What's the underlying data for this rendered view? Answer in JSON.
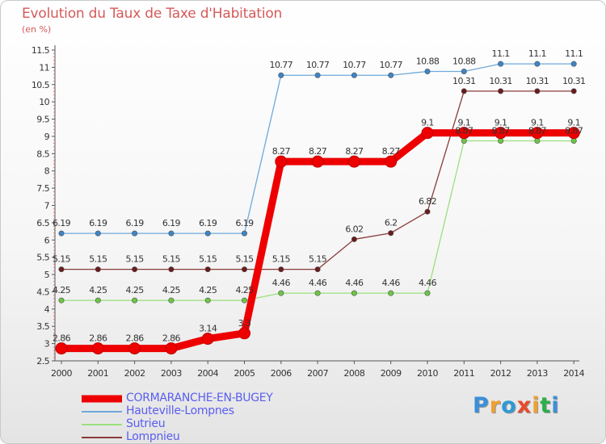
{
  "title": "Evolution du Taux de Taxe d'Habitation",
  "subtitle": "(en %)",
  "brand": {
    "text": "Proxiti",
    "letter_colors": [
      "#3b8fd9",
      "#f0a030",
      "#2e9ad6",
      "#e84a2a",
      "#f0a030",
      "#2eae4a",
      "#3b8fd9"
    ]
  },
  "chart_data": {
    "type": "line",
    "title": "Evolution du Taux de Taxe d'Habitation",
    "ylabel": "(en %)",
    "xlabel": "",
    "x": [
      "2000",
      "2001",
      "2002",
      "2003",
      "2004",
      "2005",
      "2006",
      "2007",
      "2008",
      "2009",
      "2010",
      "2011",
      "2012",
      "2013",
      "2014"
    ],
    "ylim": [
      2.5,
      11.5
    ],
    "yticks": [
      "2.5",
      "3",
      "3.5",
      "4",
      "4.5",
      "5",
      "5.5",
      "6",
      "6.5",
      "7",
      "7.5",
      "8",
      "8.5",
      "9",
      "9.5",
      "10",
      "10.5",
      "11",
      "11.5"
    ],
    "grid": false,
    "legend_position": "bottom-left",
    "series": [
      {
        "name": "CORMARANCHE-EN-BUGEY",
        "color": "#ee0000",
        "marker_color": "#ee0000",
        "width": "thick",
        "values": [
          2.86,
          2.86,
          2.86,
          2.86,
          3.14,
          3.3,
          8.27,
          8.27,
          8.27,
          8.27,
          9.1,
          9.1,
          9.1,
          9.1,
          9.1
        ],
        "labels": [
          "2.86",
          "2.86",
          "2.86",
          "2.86",
          "3.14",
          "3.3",
          "8.27",
          "8.27",
          "8.27",
          "8.27",
          "9.1",
          "9.1",
          "9.1",
          "9.1",
          "9.1"
        ]
      },
      {
        "name": "Hauteville-Lompnes",
        "color": "#6fa8dc",
        "marker_color": "#3d85c6",
        "width": "thin",
        "values": [
          6.19,
          6.19,
          6.19,
          6.19,
          6.19,
          6.19,
          10.77,
          10.77,
          10.77,
          10.77,
          10.88,
          10.88,
          11.1,
          11.1,
          11.1
        ],
        "labels": [
          "6.19",
          "6.19",
          "6.19",
          "6.19",
          "6.19",
          "6.19",
          "10.77",
          "10.77",
          "10.77",
          "10.77",
          "10.88",
          "10.88",
          "11.1",
          "11.1",
          "11.1"
        ]
      },
      {
        "name": "Sutrieu",
        "color": "#9be07c",
        "marker_color": "#6cc644",
        "width": "thin",
        "values": [
          4.25,
          4.25,
          4.25,
          4.25,
          4.25,
          4.25,
          4.46,
          4.46,
          4.46,
          4.46,
          4.46,
          8.87,
          8.87,
          8.87,
          8.87
        ],
        "labels": [
          "4.25",
          "4.25",
          "4.25",
          "4.25",
          "4.25",
          "4.25",
          "4.46",
          "4.46",
          "4.46",
          "4.46",
          "4.46",
          "8.87",
          "8.87",
          "8.87",
          "8.87"
        ]
      },
      {
        "name": "Lompnieu",
        "color": "#8b3a3a",
        "marker_color": "#6a1b1b",
        "width": "thin",
        "values": [
          5.15,
          5.15,
          5.15,
          5.15,
          5.15,
          5.15,
          5.15,
          5.15,
          6.02,
          6.2,
          6.82,
          10.31,
          10.31,
          10.31,
          10.31
        ],
        "labels": [
          "5.15",
          "5.15",
          "5.15",
          "5.15",
          "5.15",
          "5.15",
          "5.15",
          "5.15",
          "6.02",
          "6.2",
          "6.82",
          "10.31",
          "10.31",
          "10.31",
          "10.31"
        ]
      }
    ]
  }
}
